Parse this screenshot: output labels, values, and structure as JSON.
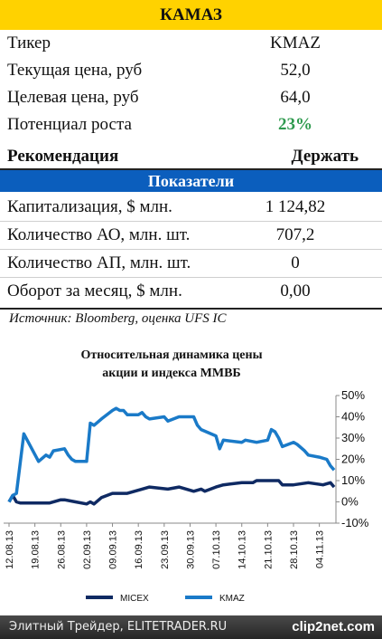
{
  "header": {
    "title": "КАМАЗ"
  },
  "table": {
    "rows": [
      [
        "Тикер",
        "KMAZ"
      ],
      [
        "Текущая цена, руб",
        "52,0"
      ],
      [
        "Целевая цена, руб",
        "64,0"
      ],
      [
        "Потенциал роста",
        "23%"
      ]
    ],
    "recommendation": [
      "Рекомендация",
      "Держать"
    ],
    "section": "Показатели",
    "indicators": [
      [
        "Капитализация, $ млн.",
        "1 124,82"
      ],
      [
        "Количество АО, млн. шт.",
        "707,2"
      ],
      [
        "Количество АП, млн. шт.",
        "0"
      ],
      [
        "Оборот за месяц, $ млн.",
        "0,00"
      ]
    ],
    "source": "Источник: Bloomberg, оценка UFS IC"
  },
  "chart_data": {
    "type": "line",
    "title": [
      "Относительная динамика цены",
      "акции и индекса ММВБ"
    ],
    "xlim": [
      0,
      88
    ],
    "xticks": [
      {
        "value": 0,
        "label": "12.08.13"
      },
      {
        "value": 7,
        "label": "19.08.13"
      },
      {
        "value": 14,
        "label": "26.08.13"
      },
      {
        "value": 21,
        "label": "02.09.13"
      },
      {
        "value": 28,
        "label": "09.09.13"
      },
      {
        "value": 35,
        "label": "16.09.13"
      },
      {
        "value": 42,
        "label": "23.09.13"
      },
      {
        "value": 49,
        "label": "30.09.13"
      },
      {
        "value": 56,
        "label": "07.10.13"
      },
      {
        "value": 63,
        "label": "14.10.13"
      },
      {
        "value": 70,
        "label": "21.10.13"
      },
      {
        "value": 77,
        "label": "28.10.13"
      },
      {
        "value": 84,
        "label": "04.11.13"
      }
    ],
    "ylim": [
      -10,
      50
    ],
    "yticks": [
      {
        "value": -10,
        "label": "-10%"
      },
      {
        "value": 0,
        "label": "0%"
      },
      {
        "value": 10,
        "label": "10%"
      },
      {
        "value": 20,
        "label": "20%"
      },
      {
        "value": 30,
        "label": "30%"
      },
      {
        "value": 40,
        "label": "40%"
      },
      {
        "value": 50,
        "label": "50%"
      }
    ],
    "series": [
      {
        "name": "MICEX",
        "color": "#0f2a63",
        "x": [
          0,
          1,
          2,
          3,
          8,
          11,
          14,
          15,
          18,
          21,
          22,
          23,
          25,
          28,
          30,
          32,
          36,
          38,
          43,
          46,
          50,
          52,
          53,
          56,
          58,
          63,
          66,
          67,
          70,
          73,
          74,
          77,
          81,
          85,
          87,
          88
        ],
        "values": [
          0,
          3,
          0,
          -0.5,
          -0.5,
          -0.5,
          1,
          1,
          0,
          -1,
          0,
          -1,
          2,
          4,
          4,
          4,
          6,
          7,
          6,
          7,
          5,
          6,
          5,
          7,
          8,
          9,
          9,
          10,
          10,
          10,
          8,
          8,
          9,
          8,
          9,
          7
        ]
      },
      {
        "name": "KMAZ",
        "color": "#1a7ac8",
        "x": [
          0,
          1,
          2,
          4,
          8,
          10,
          11,
          12,
          15,
          16,
          17,
          18,
          21,
          22,
          23,
          25,
          28,
          29,
          30,
          31,
          32,
          35,
          36,
          37,
          38,
          42,
          43,
          46,
          50,
          51,
          52,
          56,
          57,
          58,
          63,
          64,
          67,
          70,
          71,
          72,
          73,
          74,
          77,
          78,
          80,
          81,
          84,
          86,
          87,
          88
        ],
        "values": [
          0,
          3,
          4,
          32,
          19,
          22,
          21,
          24,
          25,
          22,
          20,
          19,
          19,
          37,
          36,
          39,
          43,
          44,
          43,
          43,
          41,
          41,
          42,
          40,
          39,
          40,
          38,
          40,
          40,
          36,
          34,
          31,
          25,
          29,
          28,
          29,
          28,
          29,
          34,
          33,
          30,
          26,
          28,
          27,
          24,
          22,
          21,
          20,
          17,
          15
        ]
      }
    ]
  },
  "footer": {
    "text": "Элитный Трейдер, ELITETRADER.RU",
    "logo": "clip2net.com"
  }
}
